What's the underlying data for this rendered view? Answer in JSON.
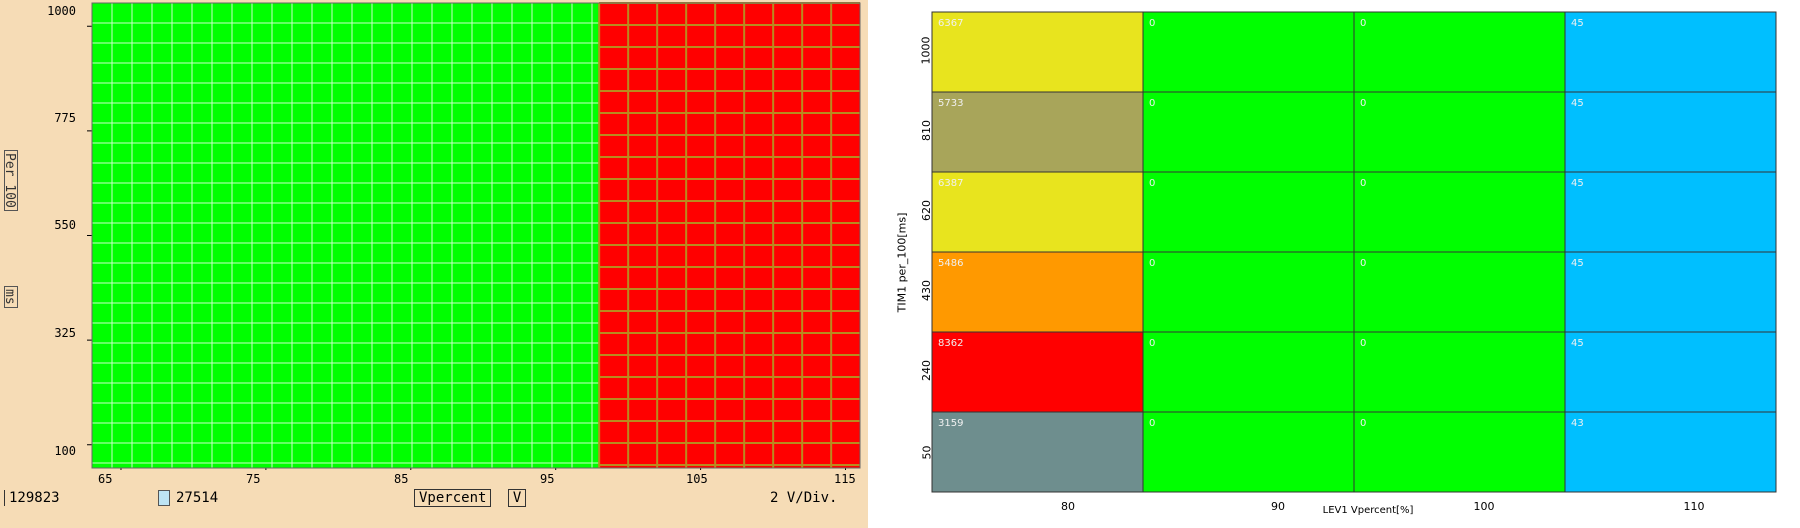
{
  "left_panel": {
    "y_ticks": [
      "1000",
      "775",
      "550",
      "325",
      "100"
    ],
    "x_ticks": [
      "65",
      "75",
      "85",
      "95",
      "105",
      "115"
    ],
    "y_axis_label": "Per 100",
    "y_unit_label": "ms",
    "status": {
      "count_total": "129823",
      "count_marked": "27514",
      "x_variable": "Vpercent",
      "x_variable_unit": "V",
      "scale": "2 V/Div."
    }
  },
  "chart_data": [
    {
      "type": "heatmap",
      "title": "",
      "xlabel": "Vpercent",
      "ylabel": "Per 100 ms",
      "xlim": [
        63,
        116
      ],
      "ylim": [
        50,
        1050
      ],
      "x_ticks": [
        65,
        75,
        85,
        95,
        105,
        115
      ],
      "y_ticks": [
        100,
        325,
        550,
        775,
        1000
      ],
      "description_regions": [
        {
          "x_range": [
            63,
            98
          ],
          "color": "#00ff00"
        },
        {
          "x_range": [
            98,
            116
          ],
          "color": "#ff0000"
        }
      ]
    },
    {
      "type": "heatmap",
      "title": "",
      "xlabel": "LEV1 Vpercent[%]",
      "ylabel": "TIM1 per_100[ms]",
      "x_categories": [
        "80",
        "90",
        "100",
        "110"
      ],
      "y_categories": [
        "1000",
        "810",
        "620",
        "430",
        "240",
        "50"
      ],
      "cells": [
        {
          "row": "1000",
          "values": [
            "6367",
            "0",
            "0",
            "45"
          ],
          "colors": [
            "#e8e41e",
            "#00ff00",
            "#00ff00",
            "#00bfff"
          ]
        },
        {
          "row": "810",
          "values": [
            "5733",
            "0",
            "0",
            "45"
          ],
          "colors": [
            "#a8a55a",
            "#00ff00",
            "#00ff00",
            "#00bfff"
          ]
        },
        {
          "row": "620",
          "values": [
            "6387",
            "0",
            "0",
            "45"
          ],
          "colors": [
            "#e8e41e",
            "#00ff00",
            "#00ff00",
            "#00bfff"
          ]
        },
        {
          "row": "430",
          "values": [
            "5486",
            "0",
            "0",
            "45"
          ],
          "colors": [
            "#ff9900",
            "#00ff00",
            "#00ff00",
            "#00bfff"
          ]
        },
        {
          "row": "240",
          "values": [
            "8362",
            "0",
            "0",
            "45"
          ],
          "colors": [
            "#ff0000",
            "#00ff00",
            "#00ff00",
            "#00bfff"
          ]
        },
        {
          "row": "50",
          "values": [
            "3159",
            "0",
            "0",
            "43"
          ],
          "colors": [
            "#6e8e8e",
            "#00ff00",
            "#00ff00",
            "#00bfff"
          ]
        }
      ]
    }
  ]
}
